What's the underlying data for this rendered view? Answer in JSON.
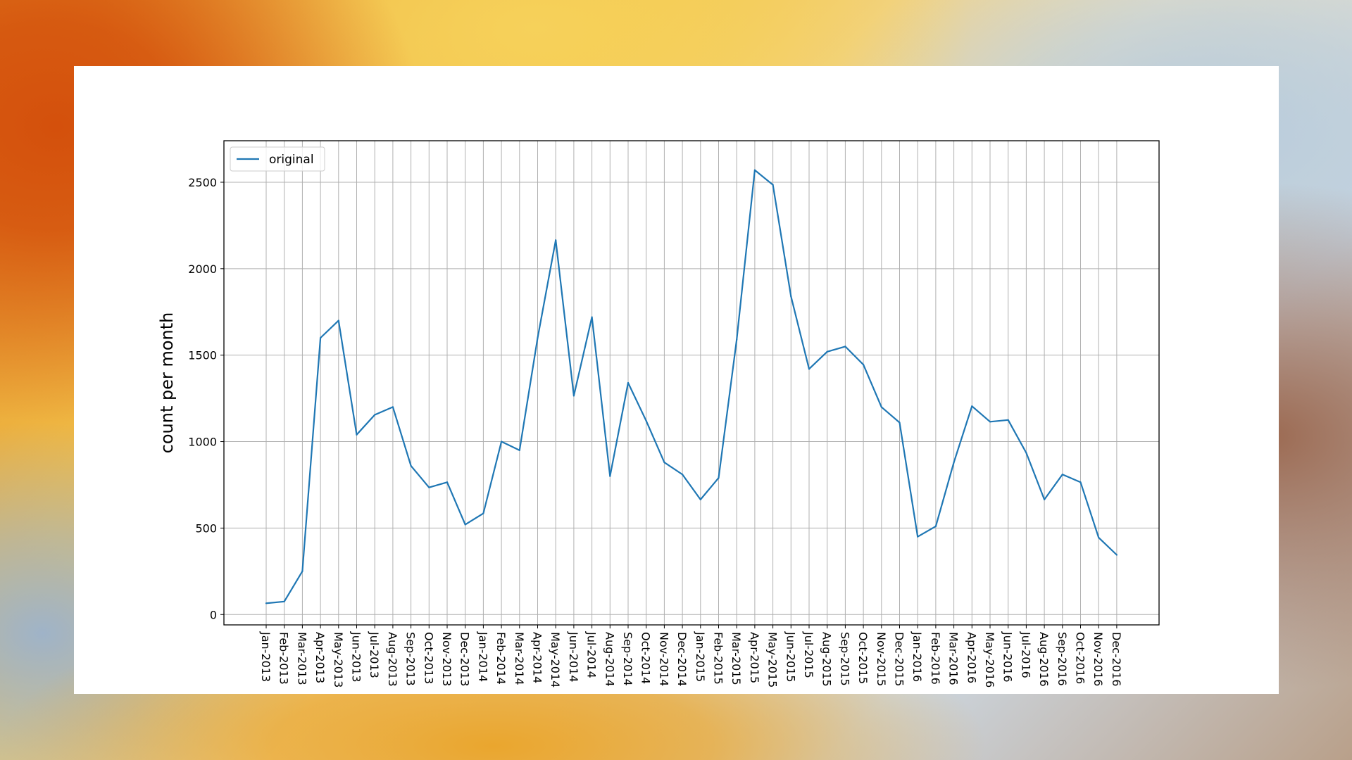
{
  "chart_data": {
    "type": "line",
    "title": "",
    "xlabel": "",
    "ylabel": "count per month",
    "ylim": [
      -60,
      2740
    ],
    "yticks": [
      0,
      500,
      1000,
      1500,
      2000,
      2500
    ],
    "grid": true,
    "legend_position": "top-left",
    "categories": [
      "Jan-2013",
      "Feb-2013",
      "Mar-2013",
      "Apr-2013",
      "May-2013",
      "Jun-2013",
      "Jul-2013",
      "Aug-2013",
      "Sep-2013",
      "Oct-2013",
      "Nov-2013",
      "Dec-2013",
      "Jan-2014",
      "Feb-2014",
      "Mar-2014",
      "Apr-2014",
      "May-2014",
      "Jun-2014",
      "Jul-2014",
      "Aug-2014",
      "Sep-2014",
      "Oct-2014",
      "Nov-2014",
      "Dec-2014",
      "Jan-2015",
      "Feb-2015",
      "Mar-2015",
      "Apr-2015",
      "May-2015",
      "Jun-2015",
      "Jul-2015",
      "Aug-2015",
      "Sep-2015",
      "Oct-2015",
      "Nov-2015",
      "Dec-2015",
      "Jan-2016",
      "Feb-2016",
      "Mar-2016",
      "Apr-2016",
      "May-2016",
      "Jun-2016",
      "Jul-2016",
      "Aug-2016",
      "Sep-2016",
      "Oct-2016",
      "Nov-2016",
      "Dec-2016"
    ],
    "series": [
      {
        "name": "original",
        "color": "#1f77b4",
        "values": [
          65,
          75,
          250,
          1600,
          1700,
          1040,
          1155,
          1200,
          860,
          735,
          765,
          520,
          585,
          1000,
          950,
          1600,
          2165,
          1265,
          1720,
          800,
          1340,
          1120,
          880,
          810,
          665,
          790,
          1590,
          2570,
          2485,
          1840,
          1420,
          1520,
          1550,
          1445,
          1200,
          1110,
          450,
          510,
          880,
          1205,
          1115,
          1125,
          935,
          665,
          810,
          765,
          445,
          345
        ]
      }
    ]
  }
}
